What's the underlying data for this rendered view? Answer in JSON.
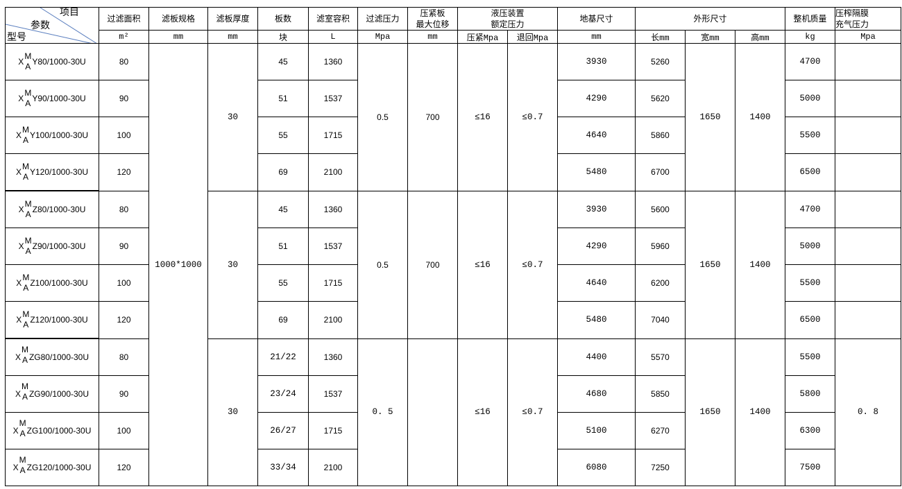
{
  "header": {
    "corner": {
      "item": "项目",
      "param": "参数",
      "model": "型号"
    },
    "columns": [
      "过滤面积",
      "滤板规格",
      "滤板厚度",
      "板数",
      "滤室容积",
      "过滤压力",
      "压紧板\n最大位移",
      "液压装置\n额定压力",
      "地基尺寸",
      "外形尺寸",
      "整机质量",
      "压榨隔膜\n充气压力"
    ],
    "units": [
      "m²",
      "mm",
      "mm",
      "块",
      "L",
      "Mpa",
      "mm",
      "压紧Mpa",
      "退回Mpa",
      "mm",
      "长mm",
      "宽mm",
      "高mm",
      "kg",
      "Mpa"
    ]
  },
  "plate_spec": "1000*1000",
  "groups": [
    {
      "thickness": "30",
      "filter_pressure": "0.5",
      "displacement": "700",
      "press": "≤16",
      "return": "≤0.7",
      "width": "1650",
      "height": "1400",
      "membrane": "",
      "rows": [
        {
          "prefix": "X",
          "sup": "M",
          "sub": "A",
          "suffix": "Y80/1000-30U",
          "area": "80",
          "plates": "45",
          "volume": "1360",
          "foundation": "3930",
          "length": "5260",
          "mass": "4700"
        },
        {
          "prefix": "X",
          "sup": "M",
          "sub": "A",
          "suffix": "Y90/1000-30U",
          "area": "90",
          "plates": "51",
          "volume": "1537",
          "foundation": "4290",
          "length": "5620",
          "mass": "5000"
        },
        {
          "prefix": "X",
          "sup": "M",
          "sub": "A",
          "suffix": "Y100/1000-30U",
          "area": "100",
          "plates": "55",
          "volume": "1715",
          "foundation": "4640",
          "length": "5860",
          "mass": "5500"
        },
        {
          "prefix": "X",
          "sup": "M",
          "sub": "A",
          "suffix": "Y120/1000-30U",
          "area": "120",
          "plates": "69",
          "volume": "2100",
          "foundation": "5480",
          "length": "6700",
          "mass": "6500"
        }
      ]
    },
    {
      "thickness": "30",
      "filter_pressure": "0.5",
      "displacement": "700",
      "press": "≤16",
      "return": "≤0.7",
      "width": "1650",
      "height": "1400",
      "membrane": "",
      "rows": [
        {
          "prefix": "X",
          "sup": "M",
          "sub": "A",
          "suffix": "Z80/1000-30U",
          "area": "80",
          "plates": "45",
          "volume": "1360",
          "foundation": "3930",
          "length": "5600",
          "mass": "4700"
        },
        {
          "prefix": "X",
          "sup": "M",
          "sub": "A",
          "suffix": "Z90/1000-30U",
          "area": "90",
          "plates": "51",
          "volume": "1537",
          "foundation": "4290",
          "length": "5960",
          "mass": "5000"
        },
        {
          "prefix": "X",
          "sup": "M",
          "sub": "A",
          "suffix": "Z100/1000-30U",
          "area": "100",
          "plates": "55",
          "volume": "1715",
          "foundation": "4640",
          "length": "6200",
          "mass": "5500"
        },
        {
          "prefix": "X",
          "sup": "M",
          "sub": "A",
          "suffix": "Z120/1000-30U",
          "area": "120",
          "plates": "69",
          "volume": "2100",
          "foundation": "5480",
          "length": "7040",
          "mass": "6500"
        }
      ]
    },
    {
      "thickness": "30",
      "filter_pressure": "0. 5",
      "displacement": "",
      "press": "≤16",
      "return": "≤0.7",
      "width": "1650",
      "height": "1400",
      "membrane": "0. 8",
      "rows": [
        {
          "prefix": "X",
          "sup": "M",
          "sub": "A",
          "suffix": "ZG80/1000-30U",
          "area": "80",
          "plates": "21/22",
          "volume": "1360",
          "foundation": "4400",
          "length": "5570",
          "mass": "5500"
        },
        {
          "prefix": "X",
          "sup": "M",
          "sub": "A",
          "suffix": "ZG90/1000-30U",
          "area": "90",
          "plates": "23/24",
          "volume": "1537",
          "foundation": "4680",
          "length": "5850",
          "mass": "5800"
        },
        {
          "prefix": "X",
          "sup": "M",
          "sub": "A",
          "suffix": "ZG100/1000-30U",
          "area": "100",
          "plates": "26/27",
          "volume": "1715",
          "foundation": "5100",
          "length": "6270",
          "mass": "6300"
        },
        {
          "prefix": "X",
          "sup": "M",
          "sub": "A",
          "suffix": "ZG120/1000-30U",
          "area": "120",
          "plates": "33/34",
          "volume": "2100",
          "foundation": "6080",
          "length": "7250",
          "mass": "7500"
        }
      ]
    }
  ]
}
